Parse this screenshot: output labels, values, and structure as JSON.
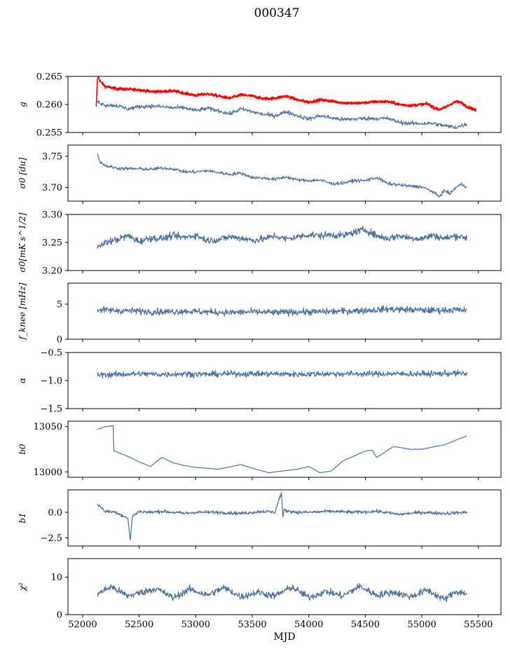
{
  "figure": {
    "title": "000347"
  },
  "colors": {
    "series": "#4c72a0",
    "highlight": "#ff0000",
    "axis": "#000000",
    "background": "#ffffff"
  },
  "chart_data": [
    {
      "type": "line",
      "ylabel": "g",
      "xlabel": "",
      "xlim": [
        51870,
        55700
      ],
      "ylim": [
        0.255,
        0.265
      ],
      "yticks": [
        0.255,
        0.26,
        0.265
      ],
      "ytick_labels": [
        "0.255",
        "0.260",
        "0.265"
      ],
      "series": [
        {
          "name": "g_red",
          "color": "#ff0000",
          "x": [
            52120,
            52130,
            52140,
            52150,
            52170,
            52200,
            52300,
            52400,
            52500,
            52600,
            52700,
            52800,
            52900,
            53000,
            53100,
            53200,
            53300,
            53400,
            53500,
            53600,
            53700,
            53800,
            53900,
            54000,
            54100,
            54200,
            54300,
            54400,
            54500,
            54600,
            54700,
            54800,
            54900,
            55000,
            55050,
            55100,
            55150,
            55200,
            55250,
            55300,
            55350,
            55400,
            55450,
            55480
          ],
          "values": [
            0.2595,
            0.2645,
            0.265,
            0.2643,
            0.2638,
            0.2632,
            0.2628,
            0.2627,
            0.2626,
            0.2623,
            0.2623,
            0.2624,
            0.262,
            0.2616,
            0.2619,
            0.2615,
            0.2611,
            0.2617,
            0.2615,
            0.261,
            0.2611,
            0.2615,
            0.2608,
            0.2604,
            0.2608,
            0.2606,
            0.2603,
            0.2602,
            0.2603,
            0.2605,
            0.2605,
            0.26,
            0.2598,
            0.26,
            0.2601,
            0.2595,
            0.2591,
            0.2594,
            0.26,
            0.2605,
            0.2603,
            0.2596,
            0.2592,
            0.2589
          ]
        },
        {
          "name": "g",
          "color": "#4c72a0",
          "x": [
            52130,
            52200,
            52300,
            52400,
            52500,
            52600,
            52700,
            52800,
            52900,
            53000,
            53100,
            53200,
            53300,
            53400,
            53500,
            53600,
            53700,
            53800,
            53900,
            54000,
            54100,
            54200,
            54300,
            54400,
            54500,
            54600,
            54700,
            54800,
            54900,
            55000,
            55100,
            55200,
            55300,
            55400
          ],
          "values": [
            0.2605,
            0.2599,
            0.2598,
            0.2592,
            0.2596,
            0.2597,
            0.2596,
            0.2594,
            0.2594,
            0.2589,
            0.2593,
            0.2589,
            0.2583,
            0.2592,
            0.2587,
            0.2582,
            0.258,
            0.2587,
            0.258,
            0.2574,
            0.258,
            0.2576,
            0.2573,
            0.2574,
            0.2575,
            0.2575,
            0.2575,
            0.2568,
            0.2566,
            0.2566,
            0.2566,
            0.2562,
            0.2559,
            0.2565
          ]
        }
      ]
    },
    {
      "type": "line",
      "ylabel": "σ0 [du]",
      "xlabel": "",
      "xlim": [
        51870,
        55700
      ],
      "ylim": [
        3.678,
        3.768
      ],
      "yticks": [
        3.7,
        3.75
      ],
      "ytick_labels": [
        "3.70",
        "3.75"
      ],
      "series": [
        {
          "name": "sigma0_du",
          "color": "#4c72a0",
          "x": [
            52130,
            52150,
            52200,
            52300,
            52400,
            52500,
            52600,
            52700,
            52800,
            52900,
            53000,
            53100,
            53200,
            53300,
            53400,
            53500,
            53600,
            53700,
            53800,
            53900,
            54000,
            54100,
            54200,
            54300,
            54400,
            54500,
            54600,
            54700,
            54800,
            54900,
            55000,
            55100,
            55150,
            55200,
            55250,
            55300,
            55350,
            55400
          ],
          "values": [
            3.755,
            3.742,
            3.735,
            3.731,
            3.73,
            3.73,
            3.729,
            3.731,
            3.73,
            3.725,
            3.725,
            3.727,
            3.724,
            3.721,
            3.723,
            3.716,
            3.715,
            3.713,
            3.717,
            3.712,
            3.711,
            3.712,
            3.706,
            3.707,
            3.711,
            3.711,
            3.716,
            3.706,
            3.704,
            3.702,
            3.701,
            3.693,
            3.685,
            3.695,
            3.69,
            3.7,
            3.705,
            3.701
          ]
        }
      ]
    },
    {
      "type": "line",
      "ylabel": "σ0[mK s^1/2]",
      "xlabel": "",
      "xlim": [
        51870,
        55700
      ],
      "ylim": [
        3.2,
        3.3
      ],
      "yticks": [
        3.2,
        3.25,
        3.3
      ],
      "ytick_labels": [
        "3.20",
        "3.25",
        "3.30"
      ],
      "series": [
        {
          "name": "sigma0_mK",
          "color": "#4c72a0",
          "x": [
            52130,
            52200,
            52300,
            52400,
            52500,
            52600,
            52700,
            52800,
            52900,
            53000,
            53100,
            53200,
            53300,
            53400,
            53500,
            53600,
            53700,
            53800,
            53900,
            54000,
            54100,
            54200,
            54300,
            54400,
            54500,
            54600,
            54700,
            54800,
            54900,
            55000,
            55100,
            55200,
            55300,
            55400
          ],
          "values": [
            3.24,
            3.25,
            3.255,
            3.262,
            3.252,
            3.258,
            3.257,
            3.262,
            3.259,
            3.263,
            3.254,
            3.255,
            3.26,
            3.258,
            3.254,
            3.256,
            3.262,
            3.256,
            3.26,
            3.264,
            3.262,
            3.264,
            3.262,
            3.268,
            3.273,
            3.262,
            3.257,
            3.262,
            3.258,
            3.257,
            3.263,
            3.257,
            3.262,
            3.258
          ]
        }
      ]
    },
    {
      "type": "line",
      "ylabel": "f_knee [mHz]",
      "xlabel": "",
      "xlim": [
        51870,
        55700
      ],
      "ylim": [
        0,
        8
      ],
      "yticks": [
        0,
        5
      ],
      "ytick_labels": [
        "0",
        "5"
      ],
      "series": [
        {
          "name": "fknee",
          "color": "#4c72a0",
          "x": [
            52130,
            52300,
            52500,
            52700,
            52900,
            53100,
            53300,
            53500,
            53700,
            53900,
            54100,
            54300,
            54500,
            54700,
            54900,
            55100,
            55300,
            55400
          ],
          "values": [
            4.2,
            4.1,
            4.0,
            3.9,
            4.0,
            3.9,
            3.8,
            3.9,
            3.8,
            3.9,
            3.9,
            4.0,
            4.1,
            4.3,
            4.2,
            4.1,
            4.2,
            4.1
          ]
        }
      ]
    },
    {
      "type": "line",
      "ylabel": "α",
      "xlabel": "",
      "xlim": [
        51870,
        55700
      ],
      "ylim": [
        -1.5,
        -0.5
      ],
      "yticks": [
        -1.5,
        -1.0,
        -0.5
      ],
      "ytick_labels": [
        "−1.5",
        "−1.0",
        "−0.5"
      ],
      "series": [
        {
          "name": "alpha",
          "color": "#4c72a0",
          "x": [
            52130,
            52300,
            52500,
            52700,
            52900,
            53100,
            53300,
            53500,
            53700,
            53900,
            54100,
            54300,
            54500,
            54700,
            54900,
            55100,
            55300,
            55400
          ],
          "values": [
            -0.9,
            -0.89,
            -0.88,
            -0.89,
            -0.88,
            -0.89,
            -0.88,
            -0.88,
            -0.88,
            -0.89,
            -0.88,
            -0.88,
            -0.88,
            -0.88,
            -0.88,
            -0.88,
            -0.87,
            -0.88
          ]
        }
      ]
    },
    {
      "type": "line",
      "ylabel": "b0",
      "xlabel": "",
      "xlim": [
        51870,
        55700
      ],
      "ylim": [
        12994,
        13056
      ],
      "yticks": [
        13000,
        13050
      ],
      "ytick_labels": [
        "13000",
        "13050"
      ],
      "series": [
        {
          "name": "b0",
          "color": "#4c72a0",
          "x": [
            52130,
            52200,
            52270,
            52275,
            52300,
            52420,
            52500,
            52600,
            52700,
            52800,
            52900,
            53000,
            53200,
            53400,
            53500,
            53650,
            53700,
            53900,
            54000,
            54100,
            54200,
            54300,
            54500,
            54560,
            54600,
            54750,
            54900,
            55000,
            55200,
            55400
          ],
          "values": [
            13047,
            13050,
            13051,
            13023,
            13022,
            13016,
            13011,
            13006,
            13016,
            13010,
            13007,
            13005,
            13003,
            13008,
            13004,
            12999,
            13000,
            13003,
            13006,
            12999,
            13001,
            13012,
            13023,
            13024,
            13016,
            13028,
            13025,
            13025,
            13030,
            13040
          ]
        }
      ]
    },
    {
      "type": "line",
      "ylabel": "b1",
      "xlabel": "",
      "xlim": [
        51870,
        55700
      ],
      "ylim": [
        -3.3,
        2.2
      ],
      "yticks": [
        -2.5,
        0.0
      ],
      "ytick_labels": [
        "−2.5",
        "0.0"
      ],
      "series": [
        {
          "name": "b1",
          "color": "#4c72a0",
          "x": [
            52130,
            52200,
            52300,
            52400,
            52420,
            52440,
            52500,
            52600,
            52700,
            52800,
            52900,
            53000,
            53200,
            53400,
            53600,
            53700,
            53760,
            53770,
            53780,
            53900,
            54000,
            54200,
            54400,
            54600,
            54800,
            55000,
            55200,
            55400
          ],
          "values": [
            0.8,
            0.1,
            0.0,
            -0.6,
            -2.8,
            -0.4,
            0.1,
            0.0,
            0.1,
            0.0,
            -0.1,
            0.0,
            0.0,
            -0.1,
            0.1,
            0.0,
            2.0,
            -0.6,
            0.2,
            0.0,
            0.0,
            0.1,
            0.0,
            0.1,
            -0.2,
            0.0,
            -0.1,
            0.0
          ]
        }
      ]
    },
    {
      "type": "line",
      "ylabel": "χ²",
      "xlabel": "MJD",
      "xlim": [
        51870,
        55700
      ],
      "ylim": [
        0,
        15
      ],
      "yticks": [
        0,
        10
      ],
      "ytick_labels": [
        "0",
        "10"
      ],
      "xticks": [
        52000,
        52500,
        53000,
        53500,
        54000,
        54500,
        55000,
        55500
      ],
      "xtick_labels": [
        "52000",
        "52500",
        "53000",
        "53500",
        "54000",
        "54500",
        "55000",
        "55500"
      ],
      "series": [
        {
          "name": "chi2",
          "color": "#4c72a0",
          "x": [
            52130,
            52250,
            52400,
            52500,
            52650,
            52800,
            52950,
            53100,
            53250,
            53400,
            53550,
            53700,
            53850,
            54000,
            54150,
            54300,
            54450,
            54600,
            54750,
            54900,
            55050,
            55200,
            55300,
            55400
          ],
          "values": [
            5.5,
            7.5,
            5.0,
            5.8,
            7.0,
            4.5,
            6.8,
            5.2,
            7.2,
            4.8,
            6.0,
            5.0,
            7.4,
            4.6,
            6.2,
            5.0,
            7.6,
            5.2,
            6.0,
            4.8,
            6.6,
            4.0,
            6.2,
            5.6
          ]
        }
      ]
    }
  ]
}
